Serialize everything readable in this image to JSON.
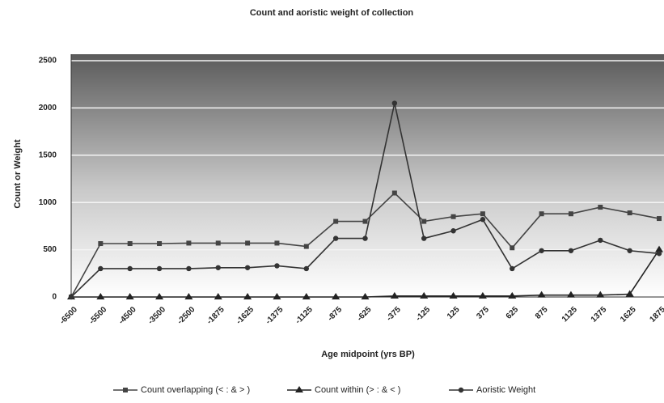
{
  "chart_data": {
    "type": "line",
    "title": "Count and aoristic weight of collection",
    "x_label": "Age midpoint (yrs BP)",
    "y_label": "Count or Weight",
    "categories": [
      "-6500",
      "-5500",
      "-4500",
      "-3500",
      "-2500",
      "-1875",
      "-1625",
      "-1375",
      "-1125",
      "-875",
      "-625",
      "-375",
      "-125",
      "125",
      "375",
      "625",
      "875",
      "1125",
      "1375",
      "1625",
      "1875"
    ],
    "series": [
      {
        "name": "Count overlapping (< : & > )",
        "color": "#444444",
        "marker": "square",
        "values": [
          0,
          565,
          565,
          565,
          570,
          570,
          570,
          570,
          535,
          800,
          800,
          1100,
          800,
          850,
          880,
          520,
          880,
          880,
          950,
          890,
          830
        ]
      },
      {
        "name": "Count within (> : & < )",
        "color": "#222222",
        "marker": "triangle",
        "values": [
          0,
          0,
          0,
          0,
          0,
          0,
          0,
          0,
          0,
          0,
          0,
          10,
          10,
          10,
          10,
          10,
          20,
          20,
          20,
          30,
          500
        ]
      },
      {
        "name": "Aoristic Weight",
        "color": "#333333",
        "marker": "circle",
        "values": [
          0,
          300,
          300,
          300,
          300,
          310,
          310,
          330,
          300,
          620,
          620,
          2050,
          620,
          700,
          820,
          300,
          490,
          490,
          600,
          490,
          460
        ]
      }
    ],
    "ylim": [
      0,
      2500
    ],
    "yticks": [
      0,
      500,
      1000,
      1500,
      2000,
      2500
    ],
    "grid": true,
    "legend": "bottom"
  }
}
